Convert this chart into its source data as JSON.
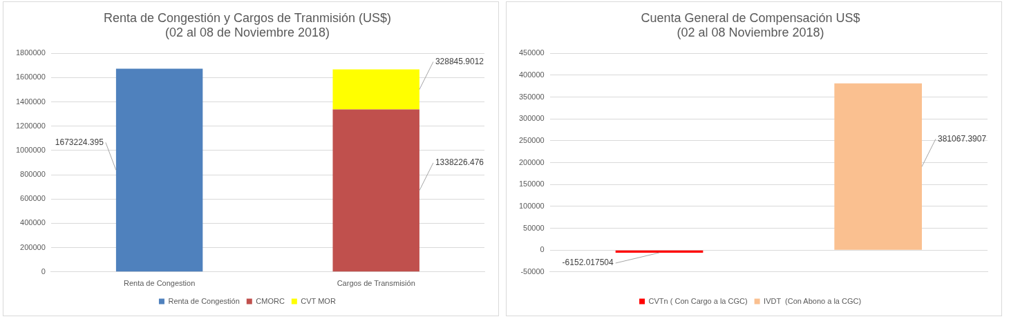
{
  "chart_data": [
    {
      "type": "bar",
      "title": "Renta de Congestión y Cargos de Tranmisión (US$)",
      "subtitle": "(02 al 08 de Noviembre 2018)",
      "categories": [
        "Renta de Congestion",
        "Cargos de Transmisión"
      ],
      "stacked": true,
      "series": [
        {
          "name": "Renta de Congestión",
          "color": "#4f81bd",
          "values": [
            1673224.395,
            null
          ]
        },
        {
          "name": "CMORC",
          "color": "#c0504d",
          "values": [
            null,
            1338226.476
          ]
        },
        {
          "name": "CVT MOR",
          "color": "#ffff00",
          "values": [
            null,
            328845.9012
          ]
        }
      ],
      "ylim": [
        0,
        1800000
      ],
      "yticks": [
        0,
        200000,
        400000,
        600000,
        800000,
        1000000,
        1200000,
        1400000,
        1600000,
        1800000
      ],
      "grid": "y",
      "legend": "bottom",
      "data_labels": true
    },
    {
      "type": "bar",
      "title": "Cuenta General de Compensación US$",
      "subtitle": "(02 al 08 Noviembre 2018)",
      "categories": [
        null,
        null
      ],
      "series": [
        {
          "name": "CVTn ( Con Cargo a la CGC)",
          "color": "#ff0000",
          "values": [
            -6152.017504,
            null
          ]
        },
        {
          "name": "IVDT  (Con Abono a la CGC)",
          "color": "#fac090",
          "values": [
            null,
            381067.3907
          ]
        }
      ],
      "ylim": [
        -50000,
        450000
      ],
      "yticks": [
        -50000,
        0,
        50000,
        100000,
        150000,
        200000,
        250000,
        300000,
        350000,
        400000,
        450000
      ],
      "grid": "y",
      "legend": "bottom",
      "data_labels": true
    }
  ]
}
